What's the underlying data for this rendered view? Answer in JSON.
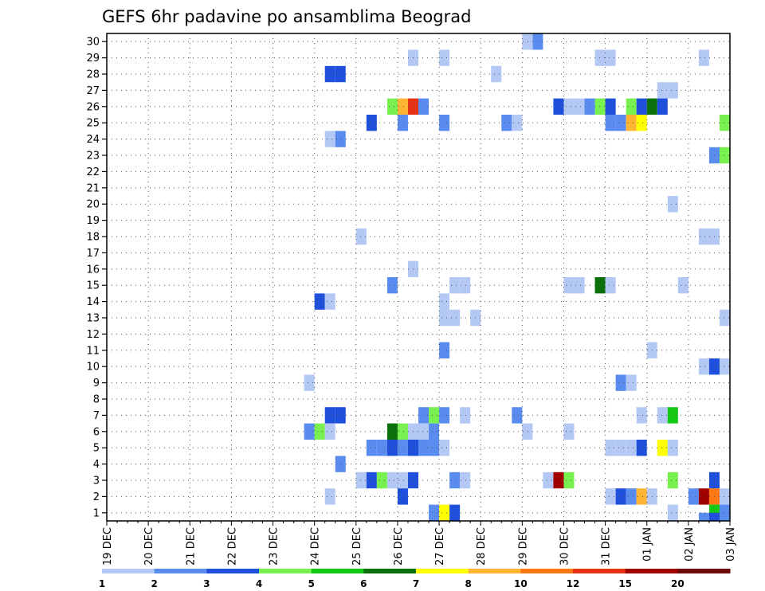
{
  "chart_data": {
    "type": "heatmap",
    "title": "GEFS 6hr padavine po ansamblima Beograd",
    "xlabel": "",
    "ylabel": "",
    "y_ticks": [
      1,
      2,
      3,
      4,
      5,
      6,
      7,
      8,
      9,
      10,
      11,
      12,
      13,
      14,
      15,
      16,
      17,
      18,
      19,
      20,
      21,
      22,
      23,
      24,
      25,
      26,
      27,
      28,
      29,
      30
    ],
    "ylim": [
      0.5,
      30.5
    ],
    "x_ticks": [
      "19 DEC",
      "20 DEC",
      "21 DEC",
      "22 DEC",
      "23 DEC",
      "24 DEC",
      "25 DEC",
      "26 DEC",
      "27 DEC",
      "28 DEC",
      "29 DEC",
      "30 DEC",
      "31 DEC",
      "01 JAN",
      "02 JAN",
      "03 JAN"
    ],
    "x_unit": "6-hour step from 19 DEC 00Z",
    "xlim": [
      0,
      60
    ],
    "colorbar": {
      "labels": [
        "1",
        "2",
        "3",
        "4",
        "5",
        "6",
        "7",
        "8",
        "10",
        "12",
        "15",
        "20"
      ],
      "colors": [
        "#b4c8f5",
        "#5a8cf0",
        "#1e50dc",
        "#78f050",
        "#14c814",
        "#0a700a",
        "#ffff00",
        "#ffb432",
        "#ff7814",
        "#e63214",
        "#a00000",
        "#6e0a0a"
      ]
    },
    "cells": [
      {
        "t": 41,
        "m": 30,
        "c": 1
      },
      {
        "t": 40,
        "m": 30,
        "c": 0
      },
      {
        "t": 29,
        "m": 29,
        "c": 0
      },
      {
        "t": 32,
        "m": 29,
        "c": 0
      },
      {
        "t": 47,
        "m": 29,
        "c": 0
      },
      {
        "t": 48,
        "m": 29,
        "c": 0
      },
      {
        "t": 57,
        "m": 29,
        "c": 0
      },
      {
        "t": 21,
        "m": 28,
        "c": 2
      },
      {
        "t": 22,
        "m": 28,
        "c": 2
      },
      {
        "t": 37,
        "m": 28,
        "c": 0
      },
      {
        "t": 53,
        "m": 27,
        "c": 0
      },
      {
        "t": 54,
        "m": 27,
        "c": 0
      },
      {
        "t": 27,
        "m": 26,
        "c": 3
      },
      {
        "t": 28,
        "m": 26,
        "c": 7
      },
      {
        "t": 29,
        "m": 26,
        "c": 9
      },
      {
        "t": 30,
        "m": 26,
        "c": 1
      },
      {
        "t": 43,
        "m": 26,
        "c": 2
      },
      {
        "t": 44,
        "m": 26,
        "c": 0
      },
      {
        "t": 45,
        "m": 26,
        "c": 0
      },
      {
        "t": 46,
        "m": 26,
        "c": 1
      },
      {
        "t": 47,
        "m": 26,
        "c": 3
      },
      {
        "t": 48,
        "m": 26,
        "c": 2
      },
      {
        "t": 50,
        "m": 26,
        "c": 3
      },
      {
        "t": 51,
        "m": 26,
        "c": 2
      },
      {
        "t": 52,
        "m": 26,
        "c": 5
      },
      {
        "t": 53,
        "m": 26,
        "c": 2
      },
      {
        "t": 25,
        "m": 25,
        "c": 2
      },
      {
        "t": 28,
        "m": 25,
        "c": 1
      },
      {
        "t": 32,
        "m": 25,
        "c": 1
      },
      {
        "t": 38,
        "m": 25,
        "c": 1
      },
      {
        "t": 39,
        "m": 25,
        "c": 0
      },
      {
        "t": 48,
        "m": 25,
        "c": 1
      },
      {
        "t": 49,
        "m": 25,
        "c": 1
      },
      {
        "t": 50,
        "m": 25,
        "c": 7
      },
      {
        "t": 51,
        "m": 25,
        "c": 6
      },
      {
        "t": 59,
        "m": 25,
        "c": 3
      },
      {
        "t": 21,
        "m": 24,
        "c": 0
      },
      {
        "t": 22,
        "m": 24,
        "c": 1
      },
      {
        "t": 58,
        "m": 23,
        "c": 1
      },
      {
        "t": 59,
        "m": 23,
        "c": 3
      },
      {
        "t": 54,
        "m": 20,
        "c": 0
      },
      {
        "t": 24,
        "m": 18,
        "c": 0
      },
      {
        "t": 57,
        "m": 18,
        "c": 0
      },
      {
        "t": 58,
        "m": 18,
        "c": 0
      },
      {
        "t": 29,
        "m": 16,
        "c": 0
      },
      {
        "t": 27,
        "m": 15,
        "c": 1
      },
      {
        "t": 33,
        "m": 15,
        "c": 0
      },
      {
        "t": 34,
        "m": 15,
        "c": 0
      },
      {
        "t": 44,
        "m": 15,
        "c": 0
      },
      {
        "t": 45,
        "m": 15,
        "c": 0
      },
      {
        "t": 47,
        "m": 15,
        "c": 5
      },
      {
        "t": 48,
        "m": 15,
        "c": 0
      },
      {
        "t": 55,
        "m": 15,
        "c": 0
      },
      {
        "t": 20,
        "m": 14,
        "c": 2
      },
      {
        "t": 21,
        "m": 14,
        "c": 0
      },
      {
        "t": 32,
        "m": 14,
        "c": 0
      },
      {
        "t": 32,
        "m": 13,
        "c": 0
      },
      {
        "t": 33,
        "m": 13,
        "c": 0
      },
      {
        "t": 35,
        "m": 13,
        "c": 0
      },
      {
        "t": 59,
        "m": 13,
        "c": 0
      },
      {
        "t": 32,
        "m": 11,
        "c": 1
      },
      {
        "t": 52,
        "m": 11,
        "c": 0
      },
      {
        "t": 57,
        "m": 10,
        "c": 0
      },
      {
        "t": 58,
        "m": 10,
        "c": 2
      },
      {
        "t": 59,
        "m": 10,
        "c": 0
      },
      {
        "t": 19,
        "m": 9,
        "c": 0
      },
      {
        "t": 49,
        "m": 9,
        "c": 1
      },
      {
        "t": 50,
        "m": 9,
        "c": 0
      },
      {
        "t": 21,
        "m": 7,
        "c": 2
      },
      {
        "t": 22,
        "m": 7,
        "c": 2
      },
      {
        "t": 30,
        "m": 7,
        "c": 1
      },
      {
        "t": 31,
        "m": 7,
        "c": 3
      },
      {
        "t": 32,
        "m": 7,
        "c": 1
      },
      {
        "t": 34,
        "m": 7,
        "c": 0
      },
      {
        "t": 39,
        "m": 7,
        "c": 1
      },
      {
        "t": 51,
        "m": 7,
        "c": 0
      },
      {
        "t": 53,
        "m": 7,
        "c": 0
      },
      {
        "t": 54,
        "m": 7,
        "c": 4
      },
      {
        "t": 19,
        "m": 6,
        "c": 1
      },
      {
        "t": 20,
        "m": 6,
        "c": 3
      },
      {
        "t": 21,
        "m": 6,
        "c": 0
      },
      {
        "t": 27,
        "m": 6,
        "c": 5
      },
      {
        "t": 28,
        "m": 6,
        "c": 3
      },
      {
        "t": 29,
        "m": 6,
        "c": 0
      },
      {
        "t": 30,
        "m": 6,
        "c": 0
      },
      {
        "t": 31,
        "m": 6,
        "c": 1
      },
      {
        "t": 40,
        "m": 6,
        "c": 0
      },
      {
        "t": 44,
        "m": 6,
        "c": 0
      },
      {
        "t": 25,
        "m": 5,
        "c": 1
      },
      {
        "t": 26,
        "m": 5,
        "c": 1
      },
      {
        "t": 27,
        "m": 5,
        "c": 2
      },
      {
        "t": 28,
        "m": 5,
        "c": 1
      },
      {
        "t": 29,
        "m": 5,
        "c": 2
      },
      {
        "t": 30,
        "m": 5,
        "c": 1
      },
      {
        "t": 31,
        "m": 5,
        "c": 1
      },
      {
        "t": 32,
        "m": 5,
        "c": 0
      },
      {
        "t": 48,
        "m": 5,
        "c": 0
      },
      {
        "t": 49,
        "m": 5,
        "c": 0
      },
      {
        "t": 50,
        "m": 5,
        "c": 0
      },
      {
        "t": 51,
        "m": 5,
        "c": 2
      },
      {
        "t": 53,
        "m": 5,
        "c": 6
      },
      {
        "t": 54,
        "m": 5,
        "c": 0
      },
      {
        "t": 22,
        "m": 4,
        "c": 1
      },
      {
        "t": 24,
        "m": 3,
        "c": 0
      },
      {
        "t": 25,
        "m": 3,
        "c": 2
      },
      {
        "t": 26,
        "m": 3,
        "c": 3
      },
      {
        "t": 27,
        "m": 3,
        "c": 0
      },
      {
        "t": 28,
        "m": 3,
        "c": 0
      },
      {
        "t": 29,
        "m": 3,
        "c": 2
      },
      {
        "t": 33,
        "m": 3,
        "c": 1
      },
      {
        "t": 34,
        "m": 3,
        "c": 0
      },
      {
        "t": 42,
        "m": 3,
        "c": 0
      },
      {
        "t": 43,
        "m": 3,
        "c": 10
      },
      {
        "t": 44,
        "m": 3,
        "c": 3
      },
      {
        "t": 54,
        "m": 3,
        "c": 3
      },
      {
        "t": 58,
        "m": 3,
        "c": 2
      },
      {
        "t": 21,
        "m": 2,
        "c": 0
      },
      {
        "t": 28,
        "m": 2,
        "c": 2
      },
      {
        "t": 48,
        "m": 2,
        "c": 0
      },
      {
        "t": 49,
        "m": 2,
        "c": 2
      },
      {
        "t": 50,
        "m": 2,
        "c": 1
      },
      {
        "t": 51,
        "m": 2,
        "c": 7
      },
      {
        "t": 52,
        "m": 2,
        "c": 0
      },
      {
        "t": 56,
        "m": 2,
        "c": 1
      },
      {
        "t": 57,
        "m": 2,
        "c": 10
      },
      {
        "t": 58,
        "m": 2,
        "c": 8
      },
      {
        "t": 59,
        "m": 2,
        "c": 0
      },
      {
        "t": 31,
        "m": 1,
        "c": 1
      },
      {
        "t": 32,
        "m": 1,
        "c": 6
      },
      {
        "t": 33,
        "m": 1,
        "c": 2
      },
      {
        "t": 54,
        "m": 1,
        "c": 0
      },
      {
        "t": 58,
        "m": 1,
        "c": 4
      },
      {
        "t": 59,
        "m": 1,
        "c": 1
      },
      {
        "t": 57,
        "m": 0.5,
        "c": 1
      },
      {
        "t": 58,
        "m": 0.5,
        "c": 2
      }
    ]
  }
}
